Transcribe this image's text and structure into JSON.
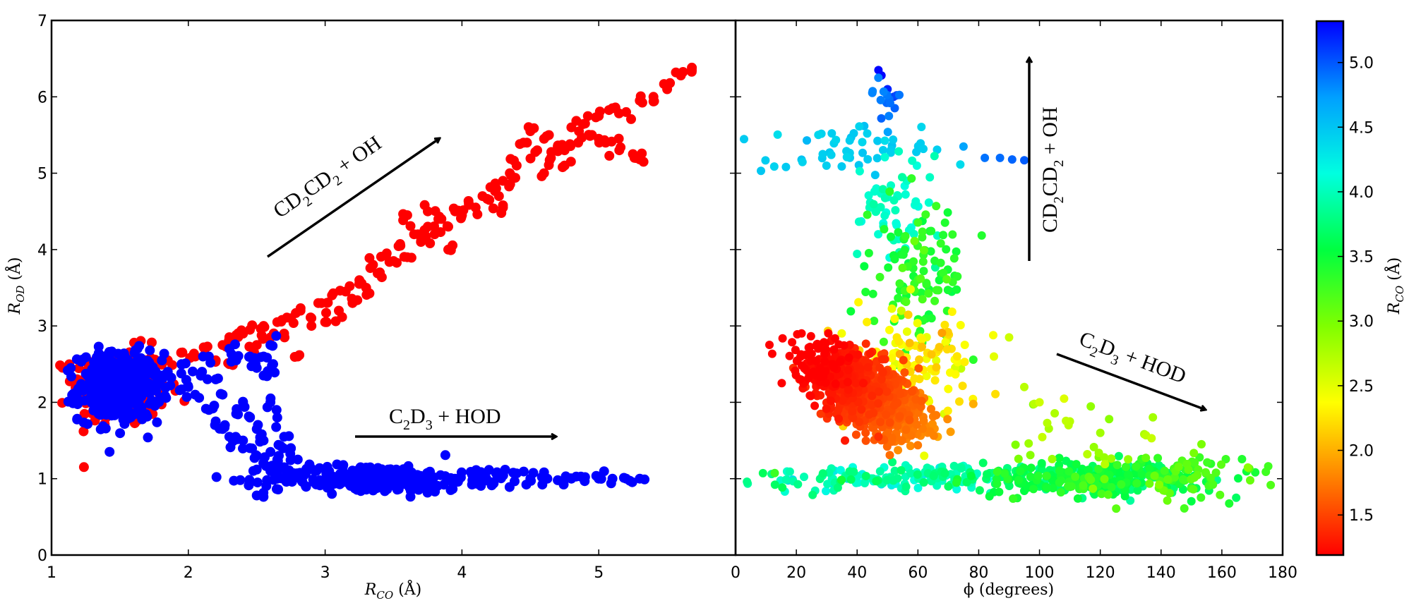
{
  "chart_data": [
    {
      "type": "scatter",
      "panel": "left",
      "xlabel": "R_CO (Å)",
      "xlabel_main": "R",
      "xlabel_sub": "CO",
      "xlabel_unit": " (Å)",
      "ylabel": "R_OD (Å)",
      "ylabel_main": "R",
      "ylabel_sub": "OD",
      "ylabel_unit": " (Å)",
      "xlim": [
        1,
        6
      ],
      "ylim": [
        0,
        7
      ],
      "xticks": [
        1,
        2,
        3,
        4,
        5
      ],
      "xtick_labels": [
        "1",
        "2",
        "3",
        "4",
        "5"
      ],
      "yticks": [
        0,
        1,
        2,
        3,
        4,
        5,
        6,
        7
      ],
      "ytick_labels": [
        "0",
        "1",
        "2",
        "3",
        "4",
        "5",
        "6",
        "7"
      ],
      "grid": false,
      "series": [
        {
          "name": "CD2CD2 + OH channel",
          "color": "#ff0000",
          "clusters": [
            {
              "cx": 1.5,
              "cy": 2.2,
              "sx": 0.17,
              "sy": 0.25,
              "n": 260
            }
          ],
          "points": [
            [
              1.85,
              2.55
            ],
            [
              1.95,
              2.65
            ],
            [
              2.05,
              2.6
            ],
            [
              2.12,
              2.7
            ],
            [
              2.2,
              2.55
            ],
            [
              2.25,
              2.75
            ],
            [
              2.3,
              2.5
            ],
            [
              2.35,
              2.85
            ],
            [
              2.4,
              2.9
            ],
            [
              2.45,
              2.95
            ],
            [
              2.5,
              2.75
            ],
            [
              2.55,
              3.0
            ],
            [
              2.6,
              2.85
            ],
            [
              2.65,
              3.05
            ],
            [
              2.7,
              2.9
            ],
            [
              2.75,
              3.1
            ],
            [
              2.8,
              2.6
            ],
            [
              2.82,
              3.2
            ],
            [
              2.9,
              3.0
            ],
            [
              2.95,
              3.3
            ],
            [
              3.0,
              3.05
            ],
            [
              3.05,
              3.4
            ],
            [
              3.1,
              3.2
            ],
            [
              3.15,
              3.45
            ],
            [
              3.2,
              3.3
            ],
            [
              3.25,
              3.6
            ],
            [
              3.3,
              3.5
            ],
            [
              3.35,
              3.8
            ],
            [
              3.4,
              3.7
            ],
            [
              3.45,
              3.95
            ],
            [
              3.5,
              3.85
            ],
            [
              3.55,
              4.05
            ],
            [
              3.6,
              3.9
            ],
            [
              3.65,
              4.2
            ],
            [
              3.7,
              4.1
            ],
            [
              3.75,
              4.3
            ],
            [
              3.8,
              4.2
            ],
            [
              3.85,
              4.4
            ],
            [
              3.9,
              4.3
            ],
            [
              3.95,
              4.5
            ],
            [
              4.0,
              4.45
            ],
            [
              4.05,
              4.6
            ],
            [
              4.1,
              4.55
            ],
            [
              4.15,
              4.7
            ],
            [
              4.2,
              4.65
            ],
            [
              4.25,
              4.8
            ],
            [
              4.3,
              4.9
            ],
            [
              4.35,
              5.0
            ],
            [
              4.4,
              5.1
            ],
            [
              4.45,
              5.4
            ],
            [
              4.5,
              5.55
            ],
            [
              4.55,
              5.3
            ],
            [
              4.6,
              5.45
            ],
            [
              4.65,
              5.2
            ],
            [
              4.7,
              5.35
            ],
            [
              4.75,
              5.3
            ],
            [
              4.8,
              5.6
            ],
            [
              4.85,
              5.4
            ],
            [
              4.9,
              5.65
            ],
            [
              4.95,
              5.5
            ],
            [
              5.0,
              5.75
            ],
            [
              5.05,
              5.4
            ],
            [
              5.1,
              5.85
            ],
            [
              5.15,
              5.3
            ],
            [
              5.2,
              5.8
            ],
            [
              5.25,
              5.25
            ],
            [
              5.3,
              5.18
            ],
            [
              5.3,
              5.95
            ],
            [
              5.4,
              6.0
            ],
            [
              5.5,
              6.1
            ],
            [
              5.6,
              6.28
            ],
            [
              5.68,
              6.35
            ],
            [
              3.6,
              4.45
            ],
            [
              3.75,
              4.5
            ],
            [
              3.9,
              4.0
            ],
            [
              4.3,
              4.55
            ],
            [
              4.6,
              5.0
            ],
            [
              4.75,
              5.1
            ],
            [
              5.0,
              5.45
            ]
          ]
        },
        {
          "name": "C2D3 + HOD channel",
          "color": "#0000ff",
          "clusters": [
            {
              "cx": 1.5,
              "cy": 2.2,
              "sx": 0.15,
              "sy": 0.22,
              "n": 420
            },
            {
              "cx": 3.3,
              "cy": 1.0,
              "sx": 0.35,
              "sy": 0.09,
              "n": 260
            },
            {
              "cx": 4.1,
              "cy": 1.0,
              "sx": 0.3,
              "sy": 0.07,
              "n": 60
            }
          ],
          "points": [
            [
              1.85,
              2.4
            ],
            [
              1.95,
              2.5
            ],
            [
              2.0,
              2.2
            ],
            [
              2.05,
              2.1
            ],
            [
              2.1,
              2.4
            ],
            [
              2.15,
              2.6
            ],
            [
              2.2,
              2.3
            ],
            [
              2.25,
              2.1
            ],
            [
              2.3,
              2.7
            ],
            [
              2.35,
              2.55
            ],
            [
              2.45,
              2.6
            ],
            [
              2.5,
              2.45
            ],
            [
              2.55,
              2.6
            ],
            [
              2.6,
              2.75
            ],
            [
              2.62,
              2.5
            ],
            [
              2.55,
              2.35
            ],
            [
              2.15,
              1.9
            ],
            [
              2.2,
              1.75
            ],
            [
              2.25,
              1.65
            ],
            [
              2.3,
              1.55
            ],
            [
              2.35,
              1.85
            ],
            [
              2.4,
              1.5
            ],
            [
              2.45,
              1.4
            ],
            [
              2.5,
              1.3
            ],
            [
              2.55,
              1.2
            ],
            [
              2.6,
              1.1
            ],
            [
              2.65,
              1.0
            ],
            [
              2.4,
              2.0
            ],
            [
              2.45,
              1.8
            ],
            [
              2.5,
              1.65
            ],
            [
              2.55,
              1.5
            ],
            [
              2.6,
              1.35
            ],
            [
              2.65,
              1.25
            ],
            [
              2.7,
              1.15
            ],
            [
              2.5,
              0.78
            ],
            [
              2.6,
              2.0
            ],
            [
              2.65,
              1.8
            ],
            [
              2.7,
              1.55
            ],
            [
              2.75,
              1.4
            ],
            [
              2.8,
              1.25
            ],
            [
              4.5,
              1.0
            ],
            [
              4.6,
              1.02
            ],
            [
              4.7,
              0.98
            ],
            [
              4.8,
              1.0
            ],
            [
              4.9,
              1.02
            ],
            [
              5.0,
              1.0
            ],
            [
              5.1,
              1.0
            ],
            [
              5.2,
              1.0
            ],
            [
              5.3,
              1.0
            ]
          ]
        }
      ],
      "annotations": [
        {
          "text": "CD2CD2 + OH",
          "arrow": "up-right"
        },
        {
          "text": "C2D3 + HOD",
          "arrow": "right"
        }
      ]
    },
    {
      "type": "scatter",
      "panel": "right",
      "xlabel": "ϕ (degrees)",
      "ylabel": "R_OD (Å)",
      "xlim": [
        0,
        180
      ],
      "ylim": [
        0,
        7
      ],
      "xticks": [
        0,
        20,
        40,
        60,
        80,
        100,
        120,
        140,
        160,
        180
      ],
      "xtick_labels": [
        "0",
        "20",
        "40",
        "60",
        "80",
        "100",
        "120",
        "140",
        "160",
        "180"
      ],
      "grid": false,
      "color_by": "R_CO (Å)",
      "clusters": [
        {
          "cx": 42,
          "cy": 2.15,
          "sx": 10,
          "sy": 0.22,
          "tilt": -0.018,
          "c0": 1.45,
          "cspread": 0.25,
          "n": 900
        },
        {
          "cx": 60,
          "cy": 2.5,
          "sx": 10,
          "sy": 0.35,
          "c0": 2.3,
          "cspread": 0.3,
          "n": 120
        },
        {
          "cx": 60,
          "cy": 3.6,
          "sx": 7,
          "sy": 0.5,
          "c0": 3.4,
          "cspread": 0.2,
          "n": 110
        },
        {
          "cx": 52,
          "cy": 4.6,
          "sx": 7,
          "sy": 0.35,
          "c0": 4.05,
          "cspread": 0.15,
          "n": 60
        },
        {
          "cx": 40,
          "cy": 5.3,
          "sx": 14,
          "sy": 0.15,
          "c0": 4.45,
          "cspread": 0.1,
          "n": 50
        },
        {
          "cx": 48,
          "cy": 5.9,
          "sx": 3,
          "sy": 0.2,
          "c0": 4.9,
          "cspread": 0.15,
          "n": 14
        },
        {
          "cx": 55,
          "cy": 1.0,
          "sx": 22,
          "sy": 0.08,
          "c0": 4.0,
          "cspread": 0.4,
          "n": 170
        },
        {
          "cx": 118,
          "cy": 1.0,
          "sx": 20,
          "sy": 0.1,
          "c0": 3.6,
          "cspread": 0.3,
          "n": 330
        },
        {
          "cx": 150,
          "cy": 1.05,
          "sx": 14,
          "sy": 0.15,
          "c0": 3.2,
          "cspread": 0.2,
          "n": 70
        },
        {
          "cx": 115,
          "cy": 1.55,
          "sx": 18,
          "sy": 0.25,
          "c0": 2.8,
          "cspread": 0.2,
          "n": 30
        }
      ],
      "points": [
        [
          47,
          6.35,
          5.3
        ],
        [
          48,
          6.28,
          5.3
        ],
        [
          50,
          6.1,
          5.2
        ],
        [
          52,
          6.0,
          5.1
        ],
        [
          53,
          6.02,
          5.05
        ],
        [
          82,
          5.2,
          4.9
        ],
        [
          87,
          5.2,
          4.92
        ],
        [
          91,
          5.18,
          4.95
        ],
        [
          95,
          5.17,
          4.98
        ],
        [
          75,
          5.35,
          4.7
        ],
        [
          19,
          2.45,
          1.4
        ],
        [
          21,
          2.3,
          1.45
        ],
        [
          23,
          2.2,
          1.4
        ],
        [
          28,
          1.85,
          1.45
        ],
        [
          36,
          1.5,
          1.3
        ],
        [
          47,
          1.55,
          1.4
        ],
        [
          85,
          2.6,
          2.5
        ],
        [
          90,
          2.85,
          2.6
        ],
        [
          95,
          2.2,
          2.7
        ],
        [
          100,
          2.0,
          2.6
        ],
        [
          110,
          1.75,
          2.7
        ],
        [
          120,
          1.6,
          2.8
        ]
      ],
      "annotations": [
        {
          "text": "CD2CD2 + OH",
          "arrow": "up"
        },
        {
          "text": "C2D3 + HOD",
          "arrow": "down-right"
        }
      ]
    }
  ],
  "colorbar": {
    "label": "R_CO (Å)",
    "label_main": "R",
    "label_sub": "CO",
    "label_unit": " (Å)",
    "range": [
      1.19,
      5.32
    ],
    "ticks": [
      1.5,
      2.0,
      2.5,
      3.0,
      3.5,
      4.0,
      4.5,
      5.0
    ],
    "tick_labels": [
      "1.5",
      "2.0",
      "2.5",
      "3.0",
      "3.5",
      "4.0",
      "4.5",
      "5.0"
    ],
    "colormap": "jet_r-like (red → yellow → green → cyan → blue)",
    "stops": [
      "#ff0000",
      "#ff8000",
      "#ffff00",
      "#80ff00",
      "#00ff40",
      "#00ffe0",
      "#00a0ff",
      "#0000ff"
    ]
  },
  "annotations": {
    "left_upper": {
      "p1": "CD",
      "s1": "2",
      "p2": "CD",
      "s2": "2",
      "p3": " + OH"
    },
    "left_lower": {
      "p1": "C",
      "s1": "2",
      "p2": "D",
      "s2": "3",
      "p3": " + HOD"
    },
    "right_upper": {
      "p1": "CD",
      "s1": "2",
      "p2": "CD",
      "s2": "2",
      "p3": " + OH"
    },
    "right_lower": {
      "p1": "C",
      "s1": "2",
      "p2": "D",
      "s2": "3",
      "p3": " + HOD"
    }
  }
}
